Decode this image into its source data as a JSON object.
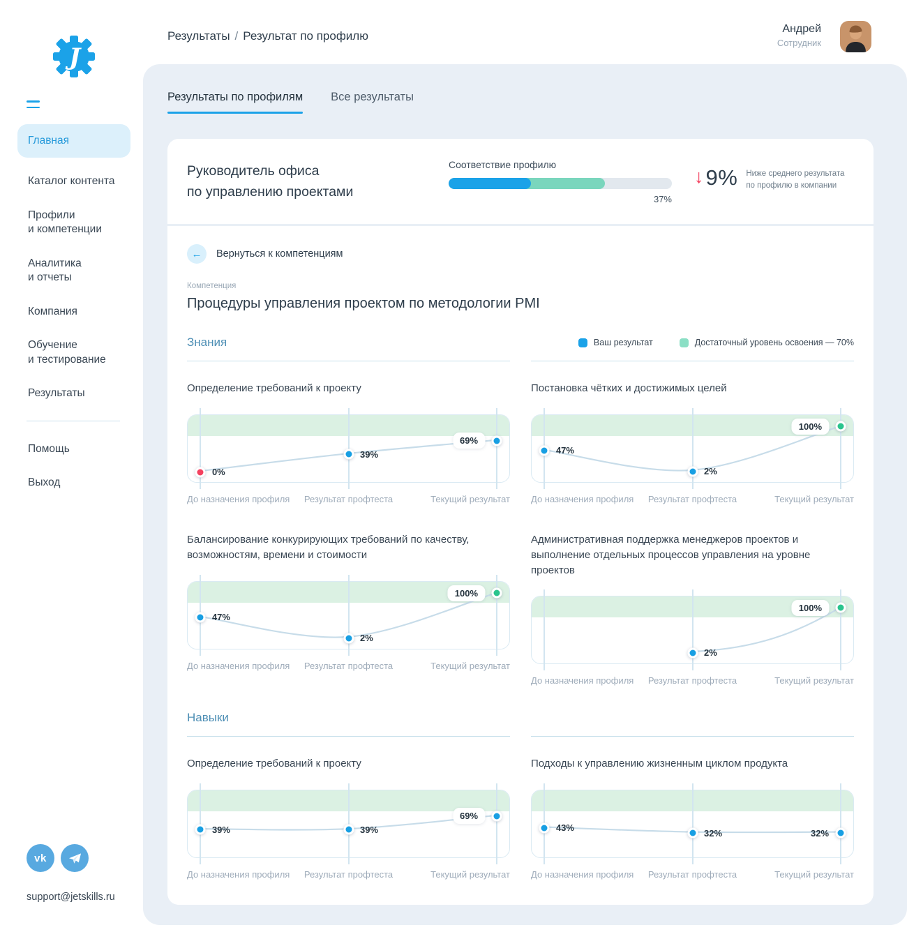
{
  "colors": {
    "accent_blue": "#1BA2E8",
    "teal": "#7AD6BD",
    "band_green": "#DBF1E3",
    "legend_mint": "#8BDFC5",
    "red": "#F4415F",
    "green_dot": "#2AC48D",
    "panel_bg": "#E9EFF6"
  },
  "header": {
    "breadcrumb": [
      "Результаты",
      "Результат по профилю"
    ],
    "user": {
      "name": "Андрей",
      "role": "Сотрудник"
    }
  },
  "sidebar": {
    "menu_items": [
      {
        "label": "Главная",
        "active": true
      },
      {
        "label": "Каталог контента",
        "active": false
      },
      {
        "label": "Профили\nи компетенции",
        "active": false
      },
      {
        "label": "Аналитика\nи отчеты",
        "active": false
      },
      {
        "label": "Компания",
        "active": false
      },
      {
        "label": "Обучение\nи тестирование",
        "active": false
      },
      {
        "label": "Результаты",
        "active": false
      }
    ],
    "footer_items": [
      {
        "label": "Помощь"
      },
      {
        "label": "Выход"
      }
    ],
    "social": [
      "vk-icon",
      "telegram-icon"
    ],
    "email": "support@jetskills.ru"
  },
  "tabs": [
    {
      "label": "Результаты по профилям",
      "active": true
    },
    {
      "label": "Все  результаты",
      "active": false
    }
  ],
  "profile_card": {
    "title": "Руководитель офиса\nпо управлению проектами",
    "match_label": "Соответствие профилю",
    "match_percent": 37,
    "threshold_percent": 70,
    "match_value": "37%",
    "delta": {
      "arrow": "↓",
      "value": "9%",
      "description": "Ниже среднего результата по профилю в компании"
    }
  },
  "competency": {
    "back_label": "Вернуться к компетенциям",
    "kicker": "Компетенция",
    "title": "Процедуры управления проектом по методологии PMI"
  },
  "legend": [
    {
      "label": "Ваш результат",
      "color": "#1BA2E8"
    },
    {
      "label": "Достаточный уровень освоения — 70%",
      "color": "#8BDFC5"
    }
  ],
  "chart_data": {
    "type": "line",
    "x_labels": [
      "До назначения профиля",
      "Результат профтеста",
      "Текущий результат"
    ],
    "ylim": [
      0,
      100
    ],
    "threshold_band": [
      70,
      100
    ],
    "point_colors": {
      "blue": "#189FE3",
      "red": "#F4415F",
      "green": "#2AC48D"
    },
    "sections": [
      {
        "title": "Знания",
        "show_legend": true,
        "charts": [
          {
            "title": "Определение требований к проекту",
            "title_rows": 1,
            "points": [
              {
                "value": 0,
                "label": "0%",
                "color": "red",
                "side": "right",
                "boxed": false
              },
              {
                "value": 39,
                "label": "39%",
                "color": "blue",
                "side": "right",
                "boxed": false
              },
              {
                "value": 69,
                "label": "69%",
                "color": "blue",
                "side": "left",
                "boxed": true
              }
            ]
          },
          {
            "title": "Постановка чётких и достижимых целей",
            "title_rows": 1,
            "points": [
              {
                "value": 47,
                "label": "47%",
                "color": "blue",
                "side": "right",
                "boxed": false
              },
              {
                "value": 2,
                "label": "2%",
                "color": "blue",
                "side": "right",
                "boxed": false
              },
              {
                "value": 100,
                "label": "100%",
                "color": "green",
                "side": "left",
                "boxed": true
              }
            ]
          },
          {
            "title": "Балансирование конкурирующих требований по качеству, возможностям, времени и стоимости",
            "title_rows": 2,
            "points": [
              {
                "value": 47,
                "label": "47%",
                "color": "blue",
                "side": "right",
                "boxed": false
              },
              {
                "value": 2,
                "label": "2%",
                "color": "blue",
                "side": "right",
                "boxed": false
              },
              {
                "value": 100,
                "label": "100%",
                "color": "green",
                "side": "left",
                "boxed": true
              }
            ]
          },
          {
            "title": "Административная поддержка менеджеров проектов и выполнение отдельных процессов управления на уровне проектов",
            "title_rows": 2,
            "points": [
              null,
              {
                "value": 2,
                "label": "2%",
                "color": "blue",
                "side": "right",
                "boxed": false
              },
              {
                "value": 100,
                "label": "100%",
                "color": "green",
                "side": "left",
                "boxed": true
              }
            ]
          }
        ]
      },
      {
        "title": "Навыки",
        "show_legend": false,
        "charts": [
          {
            "title": "Определение требований к проекту",
            "title_rows": 1,
            "points": [
              {
                "value": 39,
                "label": "39%",
                "color": "blue",
                "side": "right",
                "boxed": false
              },
              {
                "value": 39,
                "label": "39%",
                "color": "blue",
                "side": "right",
                "boxed": false
              },
              {
                "value": 69,
                "label": "69%",
                "color": "blue",
                "side": "left",
                "boxed": true
              }
            ]
          },
          {
            "title": "Подходы к управлению жизненным циклом продукта",
            "title_rows": 1,
            "points": [
              {
                "value": 43,
                "label": "43%",
                "color": "blue",
                "side": "right",
                "boxed": false
              },
              {
                "value": 32,
                "label": "32%",
                "color": "blue",
                "side": "right",
                "boxed": false
              },
              {
                "value": 32,
                "label": "32%",
                "color": "blue",
                "side": "left",
                "boxed": false
              }
            ]
          }
        ]
      }
    ]
  }
}
